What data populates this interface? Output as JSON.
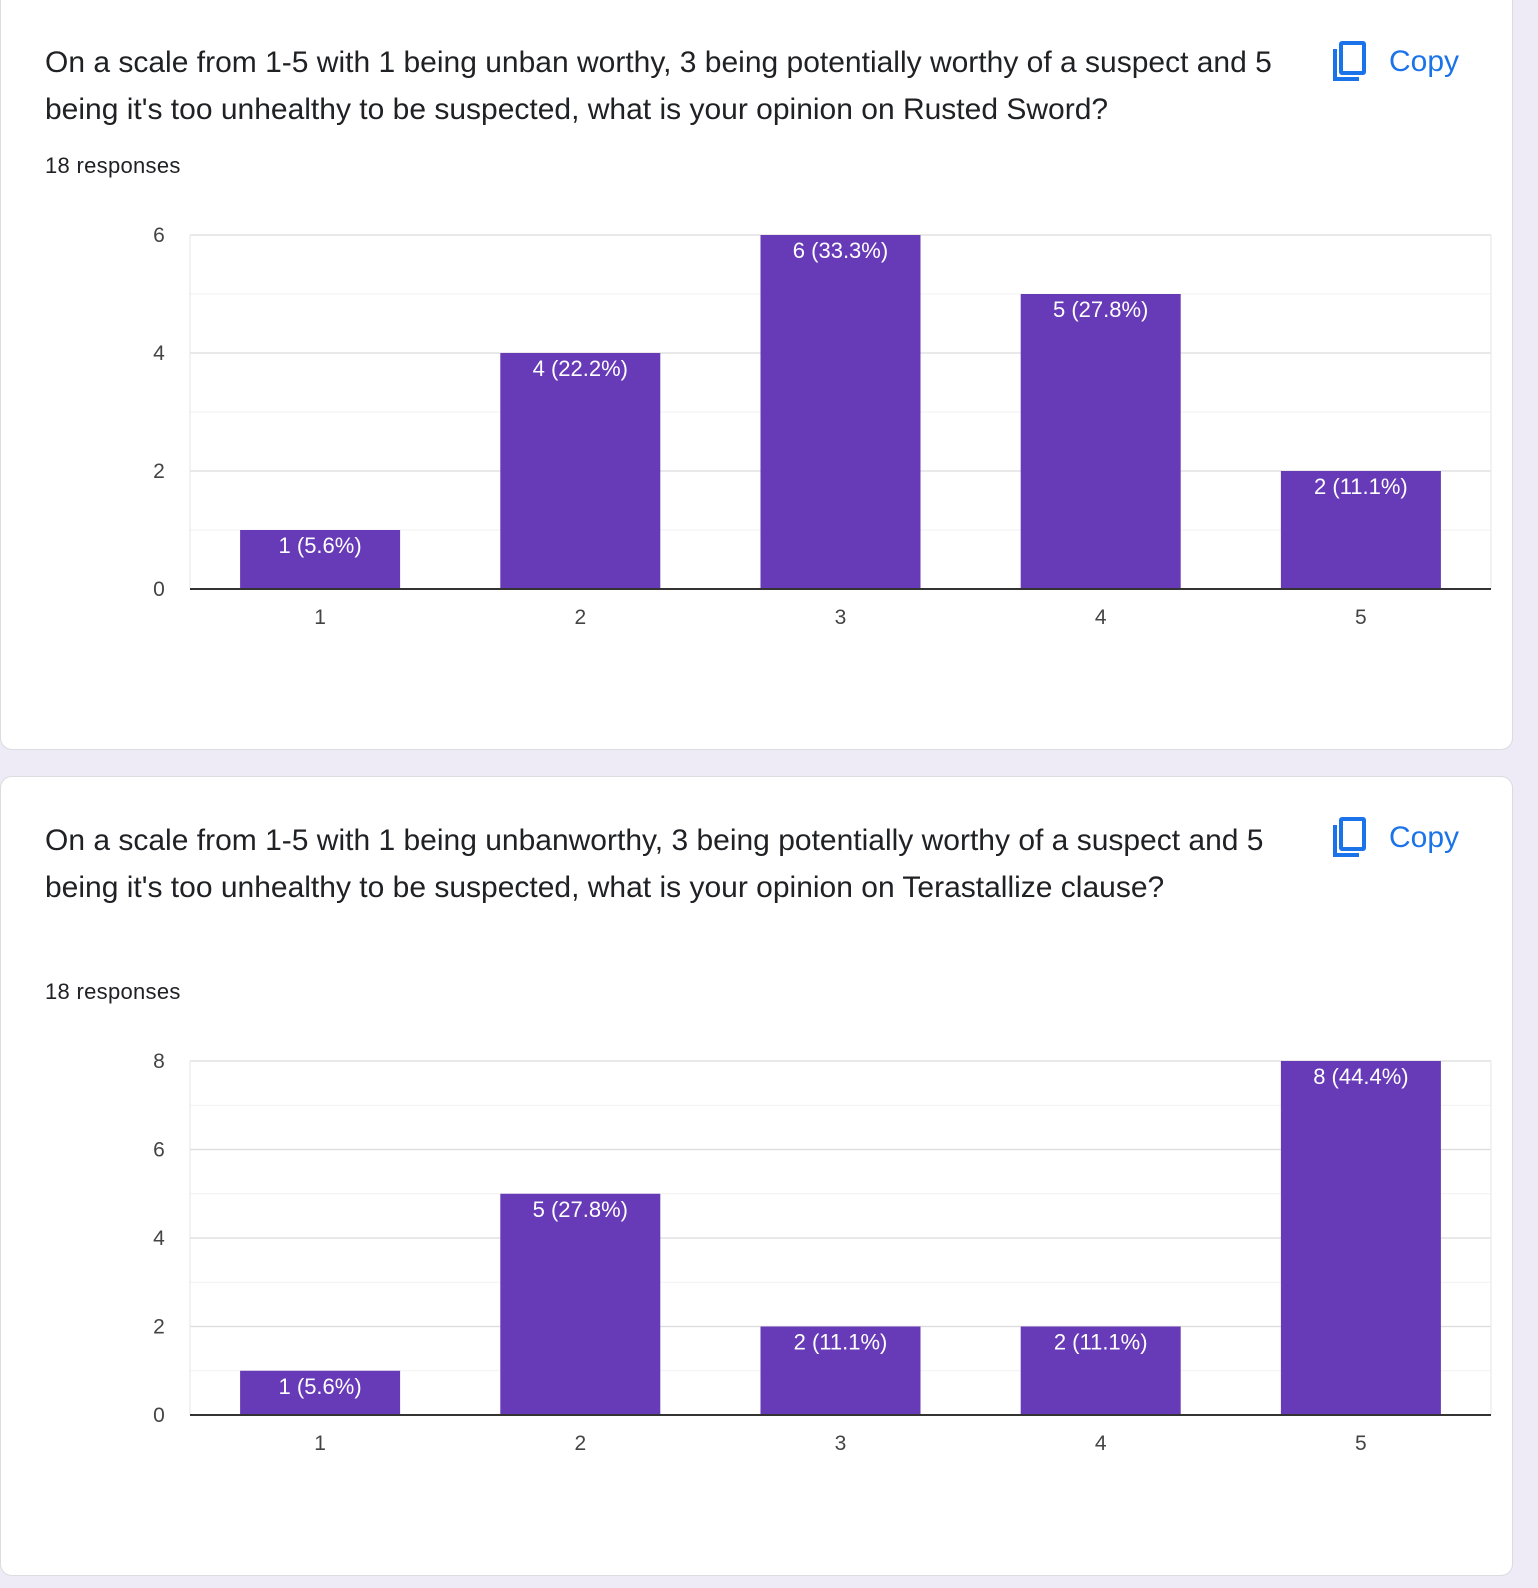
{
  "questions": [
    {
      "text": "On a scale from 1-5 with 1 being unban worthy, 3 being potentially worthy of a suspect and 5 being it's too unhealthy to be suspected, what is your opinion on Rusted Sword?",
      "responses_label": "18 responses",
      "copy_label": "Copy"
    },
    {
      "text": "On a scale from 1-5 with 1 being unbanworthy, 3 being potentially worthy of a suspect and 5 being it's too unhealthy to be suspected, what is your opinion on Terastallize clause?",
      "responses_label": "18 responses",
      "copy_label": "Copy"
    }
  ],
  "colors": {
    "bar": "#673ab7",
    "accent": "#1a73e8",
    "background": "#eeebf7"
  },
  "chart_data": [
    {
      "type": "bar",
      "categories": [
        "1",
        "2",
        "3",
        "4",
        "5"
      ],
      "values": [
        1,
        4,
        6,
        5,
        2
      ],
      "data_labels": [
        "1 (5.6%)",
        "4 (22.2%)",
        "6 (33.3%)",
        "5 (27.8%)",
        "2 (11.1%)"
      ],
      "yticks": [
        0,
        2,
        4,
        6
      ],
      "ylim": [
        0,
        6
      ],
      "grid": true
    },
    {
      "type": "bar",
      "categories": [
        "1",
        "2",
        "3",
        "4",
        "5"
      ],
      "values": [
        1,
        5,
        2,
        2,
        8
      ],
      "data_labels": [
        "1 (5.6%)",
        "5 (27.8%)",
        "2 (11.1%)",
        "2 (11.1%)",
        "8 (44.4%)"
      ],
      "yticks": [
        0,
        2,
        4,
        6,
        8
      ],
      "ylim": [
        0,
        8
      ],
      "grid": true
    }
  ]
}
